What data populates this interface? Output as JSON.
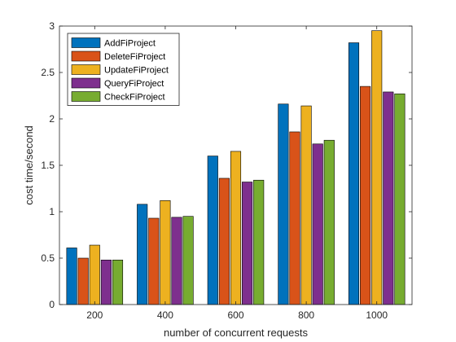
{
  "chart_data": {
    "type": "bar",
    "xlabel": "number of concurrent requests",
    "ylabel": "cost time/second",
    "categories": [
      "200",
      "400",
      "600",
      "800",
      "1000"
    ],
    "ylim": [
      0,
      3
    ],
    "yticks": [
      "0",
      "0.5",
      "1",
      "1.5",
      "2",
      "2.5",
      "3"
    ],
    "grid": false,
    "legend_position": "top-left",
    "series": [
      {
        "name": "AddFiProject",
        "color": "#0072BD",
        "values": [
          0.61,
          1.08,
          1.6,
          2.16,
          2.82
        ]
      },
      {
        "name": "DeleteFiProject",
        "color": "#D95319",
        "values": [
          0.5,
          0.93,
          1.36,
          1.86,
          2.35
        ]
      },
      {
        "name": "UpdateFiProject",
        "color": "#EDB120",
        "values": [
          0.64,
          1.12,
          1.65,
          2.14,
          2.95
        ]
      },
      {
        "name": "QueryFiProject",
        "color": "#7E2F8E",
        "values": [
          0.48,
          0.94,
          1.32,
          1.73,
          2.29
        ]
      },
      {
        "name": "CheckFiProject",
        "color": "#77AC30",
        "values": [
          0.48,
          0.95,
          1.34,
          1.77,
          2.27
        ]
      }
    ]
  }
}
